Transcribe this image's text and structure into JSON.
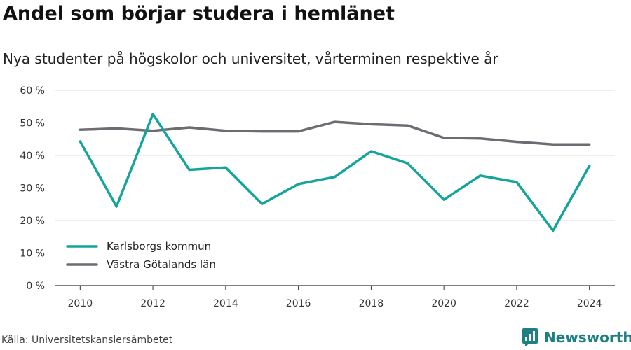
{
  "title": "Andel som börjar studera i hemlänet",
  "subtitle": "Nya studenter på högskolor och universitet, vårterminen respektive år",
  "source": "Källa: Universitetskanslersämbetet",
  "brand": {
    "name": "Newsworthy",
    "icon": "newsworthy-logo-icon",
    "color": "#1e8080"
  },
  "chart_data": {
    "type": "line",
    "title": "Andel som börjar studera i hemlänet",
    "subtitle": "Nya studenter på högskolor och universitet, vårterminen respektive år",
    "xlabel": "",
    "ylabel": "",
    "x": [
      2010,
      2011,
      2012,
      2013,
      2014,
      2015,
      2016,
      2017,
      2018,
      2019,
      2020,
      2021,
      2022,
      2023,
      2024
    ],
    "xticks": [
      "2010",
      "2012",
      "2014",
      "2016",
      "2018",
      "2020",
      "2022",
      "2024"
    ],
    "xlim": [
      2009.3,
      2024.7
    ],
    "ylim": [
      0,
      60
    ],
    "yticks": [
      "0 %",
      "10 %",
      "20 %",
      "30 %",
      "40 %",
      "50 %",
      "60 %"
    ],
    "grid": true,
    "legend_position": "bottom-left",
    "series": [
      {
        "name": "Karlsborgs kommun",
        "color": "#14a59a",
        "values": [
          44.3,
          24.3,
          52.7,
          35.6,
          36.3,
          25.1,
          31.2,
          33.4,
          41.3,
          37.6,
          26.4,
          33.8,
          31.8,
          16.9,
          36.8
        ]
      },
      {
        "name": "Västra Götalands län",
        "color": "#6d6c72",
        "values": [
          47.9,
          48.3,
          47.6,
          48.6,
          47.6,
          47.4,
          47.4,
          50.3,
          49.6,
          49.2,
          45.4,
          45.2,
          44.2,
          43.4,
          43.4
        ]
      }
    ]
  }
}
